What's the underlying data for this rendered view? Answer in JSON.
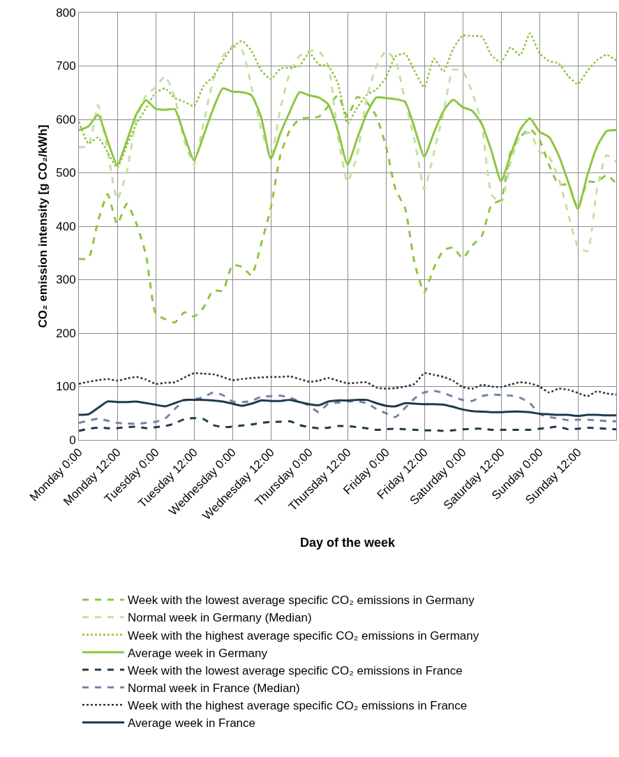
{
  "chart_data": {
    "type": "line",
    "xlabel": "Day of the week",
    "ylabel": "CO₂ emission intensity [g CO₂/kWh]",
    "categories": [
      "Monday 0:00",
      null,
      null,
      null,
      "Monday 12:00",
      null,
      null,
      null,
      "Tuesday 0:00",
      null,
      null,
      null,
      "Tuesday 12:00",
      null,
      null,
      null,
      "Wednesday 0:00",
      null,
      null,
      null,
      "Wednesday 12:00",
      null,
      null,
      null,
      "Thursday 0:00",
      null,
      null,
      null,
      "Thursday 12:00",
      null,
      null,
      null,
      "Friday 0:00",
      null,
      null,
      null,
      "Friday 12:00",
      null,
      null,
      null,
      "Saturday 0:00",
      null,
      null,
      null,
      "Saturday 12:00",
      null,
      null,
      null,
      "Sunday 0:00",
      null,
      null,
      null,
      "Sunday 12:00",
      null,
      null,
      null,
      null
    ],
    "ylim": [
      0,
      800
    ],
    "yticks": [
      0,
      100,
      200,
      300,
      400,
      500,
      600,
      700,
      800
    ],
    "grid": true,
    "legend": "bottom",
    "series": [
      {
        "name": "Week with the lowest average specific CO₂ emissions in Germany",
        "color": "#8dc63f",
        "line_style": "dashed",
        "values": [
          339,
          340,
          410,
          460,
          404,
          442,
          405,
          346,
          237,
          226,
          220,
          239,
          231,
          248,
          280,
          279,
          327,
          324,
          308,
          367,
          434,
          533,
          580,
          601,
          603,
          605,
          625,
          645,
          605,
          642,
          632,
          606,
          550,
          469,
          434,
          330,
          276,
          322,
          355,
          360,
          340,
          364,
          382,
          440,
          450,
          539,
          567,
          582,
          562,
          515,
          478,
          478,
          434,
          483,
          483,
          496,
          480
        ]
      },
      {
        "name": "Normal week in Germany (Median)",
        "color": "#c5e0a5",
        "line_style": "dashed",
        "values": [
          548,
          550,
          627,
          540,
          450,
          503,
          600,
          645,
          660,
          681,
          640,
          560,
          515,
          594,
          673,
          718,
          737,
          730,
          660,
          583,
          530,
          620,
          688,
          719,
          728,
          728,
          700,
          569,
          483,
          533,
          640,
          699,
          728,
          710,
          635,
          560,
          469,
          537,
          613,
          693,
          690,
          650,
          590,
          460,
          443,
          520,
          569,
          575,
          540,
          530,
          490,
          423,
          363,
          353,
          470,
          533,
          520
        ]
      },
      {
        "name": "Week with the highest average specific CO₂ emissions in Germany",
        "color": "#8dc63f",
        "line_style": "dotted",
        "values": [
          596,
          555,
          566,
          538,
          510,
          551,
          592,
          621,
          650,
          658,
          640,
          633,
          625,
          663,
          680,
          710,
          735,
          747,
          728,
          692,
          675,
          695,
          697,
          700,
          725,
          703,
          700,
          667,
          592,
          622,
          646,
          656,
          678,
          718,
          723,
          690,
          660,
          714,
          690,
          732,
          757,
          756,
          755,
          720,
          707,
          735,
          720,
          761,
          724,
          709,
          705,
          681,
          666,
          691,
          711,
          721,
          710
        ]
      },
      {
        "name": "Average week in Germany",
        "color": "#8dc63f",
        "line_style": "solid",
        "values": [
          580,
          587,
          609,
          560,
          514,
          560,
          610,
          636,
          620,
          618,
          619,
          570,
          523,
          570,
          620,
          658,
          652,
          651,
          645,
          604,
          526,
          574,
          615,
          651,
          645,
          641,
          628,
          579,
          515,
          564,
          611,
          641,
          640,
          638,
          633,
          583,
          530,
          575,
          616,
          637,
          623,
          616,
          591,
          541,
          484,
          534,
          581,
          602,
          577,
          567,
          533,
          483,
          432,
          496,
          549,
          578,
          580
        ]
      },
      {
        "name": "Week with the lowest average specific CO₂ emissions in France",
        "color": "#1f3a4a",
        "line_style": "dashed",
        "values": [
          17,
          21,
          23,
          22,
          22,
          24,
          25,
          22,
          24,
          26,
          31,
          39,
          41,
          39,
          28,
          24,
          25,
          27,
          29,
          32,
          34,
          34,
          35,
          28,
          24,
          22,
          23,
          26,
          26,
          24,
          22,
          19,
          20,
          21,
          20,
          19,
          18,
          18,
          17,
          18,
          20,
          21,
          21,
          19,
          19,
          19,
          19,
          19,
          21,
          23,
          25,
          20,
          21,
          23,
          22,
          21,
          20
        ]
      },
      {
        "name": "Normal week in France (Median)",
        "color": "#7a7fa8",
        "line_style": "dashed",
        "values": [
          32,
          36,
          40,
          36,
          32,
          31,
          30,
          32,
          34,
          40,
          58,
          74,
          76,
          80,
          89,
          84,
          72,
          71,
          73,
          81,
          82,
          83,
          79,
          72,
          64,
          52,
          68,
          70,
          72,
          72,
          69,
          58,
          50,
          43,
          60,
          78,
          89,
          92,
          88,
          81,
          75,
          73,
          82,
          85,
          84,
          83,
          79,
          69,
          49,
          43,
          40,
          37,
          38,
          38,
          37,
          35,
          35
        ]
      },
      {
        "name": "Week with the highest average specific CO₂ emissions in France",
        "color": "#1f3a4a",
        "line_style": "dotted",
        "values": [
          105,
          109,
          112,
          114,
          111,
          115,
          118,
          113,
          105,
          107,
          108,
          117,
          125,
          124,
          123,
          118,
          112,
          114,
          116,
          117,
          118,
          118,
          119,
          114,
          109,
          111,
          116,
          111,
          106,
          107,
          108,
          98,
          96,
          97,
          100,
          105,
          125,
          122,
          118,
          111,
          99,
          96,
          103,
          100,
          99,
          104,
          108,
          106,
          100,
          89,
          96,
          94,
          88,
          82,
          91,
          87,
          85
        ]
      },
      {
        "name": "Average week in France",
        "color": "#1f3a4a",
        "line_style": "solid",
        "values": [
          47,
          48,
          60,
          72,
          71,
          71,
          72,
          69,
          66,
          63,
          69,
          75,
          75,
          75,
          74,
          72,
          68,
          64,
          68,
          74,
          73,
          73,
          75,
          71,
          67,
          65,
          72,
          74,
          74,
          75,
          75,
          69,
          64,
          63,
          69,
          68,
          67,
          67,
          66,
          62,
          57,
          54,
          53,
          52,
          52,
          53,
          53,
          52,
          49,
          48,
          47,
          47,
          45,
          47,
          47,
          46,
          46
        ]
      }
    ]
  }
}
